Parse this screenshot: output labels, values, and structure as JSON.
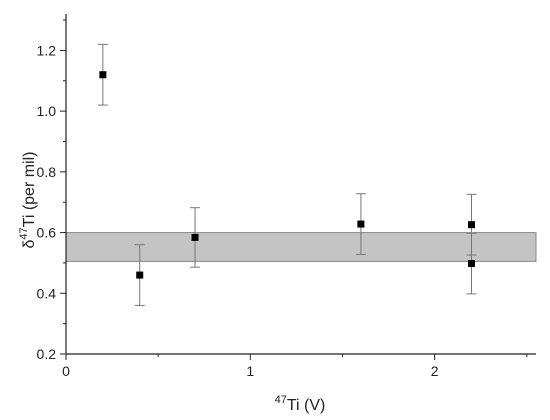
{
  "chart_data": {
    "type": "scatter",
    "xlabel": {
      "sup": "47",
      "main": "Ti (V)"
    },
    "ylabel": {
      "prefix": "δ",
      "sup": "47",
      "main": "Ti (per mil)"
    },
    "xlim": [
      0,
      2.55
    ],
    "ylim": [
      0.2,
      1.32
    ],
    "xticks": [
      0,
      1,
      2
    ],
    "xtick_labels": [
      "0",
      "1",
      "2"
    ],
    "yticks": [
      0.2,
      0.4,
      0.6,
      0.8,
      1.0,
      1.2
    ],
    "ytick_labels": [
      "0.2",
      "0.4",
      "0.6",
      "0.8",
      "1.0",
      "1.2"
    ],
    "grid": false,
    "points": [
      {
        "x": 0.2,
        "y": 1.12,
        "err": 0.1
      },
      {
        "x": 0.4,
        "y": 0.46,
        "err": 0.1
      },
      {
        "x": 0.7,
        "y": 0.584,
        "err": 0.098
      },
      {
        "x": 1.6,
        "y": 0.628,
        "err": 0.1
      },
      {
        "x": 2.2,
        "y": 0.626,
        "err": 0.1
      },
      {
        "x": 2.2,
        "y": 0.498,
        "err": 0.1
      }
    ],
    "band": {
      "x0": 0,
      "x1": 2.55,
      "y0": 0.505,
      "y1": 0.6
    },
    "colors": {
      "marker": "#000000",
      "errorbar": "#777777",
      "band_fill": "#c4c4c4",
      "band_stroke": "#8a8a8a",
      "axis": "#222222"
    }
  }
}
